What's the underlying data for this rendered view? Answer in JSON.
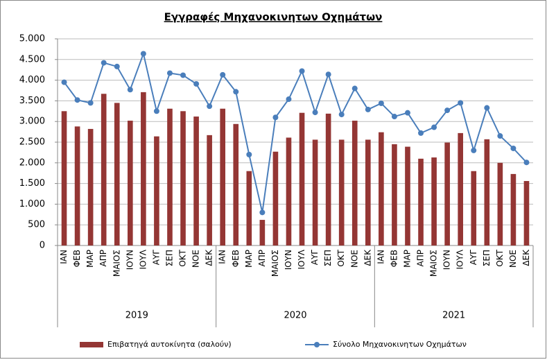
{
  "chart_data": {
    "type": "combo",
    "title": "Εγγραφές Μηχανοκινητων Οχημάτων",
    "categories": [
      "ΙΑΝ",
      "ΦΕΒ",
      "ΜΑΡ",
      "ΑΠΡ",
      "ΜΑΙΟΣ",
      "ΙΟΥΝ",
      "ΙΟΥΛ",
      "ΑΥΓ",
      "ΣΕΠ",
      "ΟΚΤ",
      "ΝΟΕ",
      "ΔΕΚ",
      "ΙΑΝ",
      "ΦΕΒ",
      "ΜΑΡ",
      "ΑΠΡ",
      "ΜΑΙΟΣ",
      "ΙΟΥΝ",
      "ΙΟΥΛ",
      "ΑΥΓ",
      "ΣΕΠ",
      "ΟΚΤ",
      "ΝΟΕ",
      "ΔΕΚ",
      "ΙΑΝ",
      "ΦΕΒ",
      "ΜΑΡ",
      "ΑΠΡ",
      "ΜΑΙΟΣ",
      "ΙΟΥΝ",
      "ΙΟΥΛ",
      "ΑΥΓ",
      "ΣΕΠ",
      "ΟΚΤ",
      "ΝΟΕ",
      "ΔΕΚ"
    ],
    "groups": [
      {
        "label": "2019",
        "size": 12
      },
      {
        "label": "2020",
        "size": 12
      },
      {
        "label": "2021",
        "size": 12
      }
    ],
    "series": [
      {
        "name": "Επιβατηγά αυτοκίνητα (σαλούν)",
        "type": "bar",
        "color": "#943634",
        "values": [
          3250,
          2880,
          2820,
          3670,
          3450,
          3020,
          3710,
          2640,
          3310,
          3250,
          3120,
          2670,
          3310,
          2940,
          1800,
          620,
          2270,
          2610,
          3210,
          2560,
          3190,
          2560,
          3020,
          2560,
          2740,
          2450,
          2390,
          2100,
          2130,
          2490,
          2720,
          1800,
          2570,
          2000,
          1730,
          1560
        ]
      },
      {
        "name": "Σύνολο Μηχανοκινητων Οχημάτων",
        "type": "line",
        "color": "#4a7ebb",
        "values": [
          3950,
          3520,
          3450,
          4420,
          4330,
          3770,
          4640,
          3250,
          4170,
          4120,
          3910,
          3370,
          4130,
          3720,
          2200,
          800,
          3100,
          3540,
          4220,
          3220,
          4140,
          3170,
          3800,
          3290,
          3440,
          3120,
          3210,
          2720,
          2860,
          3270,
          3450,
          2300,
          3330,
          2650,
          2350,
          2010
        ]
      }
    ],
    "ylim": [
      0,
      5000
    ],
    "yticks": [
      0,
      500,
      {
        "value": 1000,
        "label": "1.000"
      },
      {
        "value": 1500,
        "label": "1.500"
      },
      {
        "value": 2000,
        "label": "2.000"
      },
      {
        "value": 2500,
        "label": "2.500"
      },
      {
        "value": 3000,
        "label": "3.000"
      },
      {
        "value": 3500,
        "label": "3.500"
      },
      {
        "value": 4000,
        "label": "4.000"
      },
      {
        "value": 4500,
        "label": "4.500"
      },
      {
        "value": 5000,
        "label": "5.000"
      }
    ],
    "grid": true
  }
}
